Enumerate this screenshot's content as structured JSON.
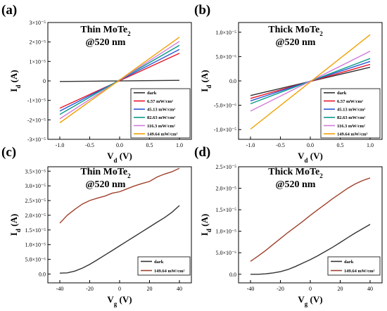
{
  "chart_data": [
    {
      "panel": "(a)",
      "type": "line",
      "title_line1": "Thin MoTe",
      "title_sub": "2",
      "title_line2": "@520 nm",
      "xlabel_main": "V",
      "xlabel_sub": "d",
      "xlabel_unit": " (V)",
      "ylabel_main": "I",
      "ylabel_sub": "d",
      "ylabel_unit": " (A)",
      "xlim": [
        -1.2,
        1.2
      ],
      "ylim": [
        -3e-05,
        3e-05
      ],
      "xticks": [
        -1.0,
        -0.5,
        0.0,
        0.5,
        1.0
      ],
      "xtick_labels": [
        "-1.0",
        "-0.5",
        "0.0",
        "0.5",
        "1.0"
      ],
      "yticks": [
        -3e-05,
        -2e-05,
        -1e-05,
        0,
        1e-05,
        2e-05,
        3e-05
      ],
      "ytick_labels": [
        "-3×10⁻⁵",
        "-2×10⁻⁵",
        "-1×10⁻⁵",
        "0",
        "1×10⁻⁵",
        "2×10⁻⁵",
        "3×10⁻⁵"
      ],
      "legend": "bottom-right",
      "series": [
        {
          "name": "dark",
          "color": "#333333",
          "x": [
            -1,
            1
          ],
          "y": [
            -3e-07,
            3e-07
          ]
        },
        {
          "name": "6.57 mW/cm²",
          "color": "#e8142a",
          "x": [
            -1,
            1
          ],
          "y": [
            -1.4e-05,
            1.42e-05
          ]
        },
        {
          "name": "45.13 mW/cm²",
          "color": "#2a57d6",
          "x": [
            -1,
            1
          ],
          "y": [
            -1.55e-05,
            1.62e-05
          ]
        },
        {
          "name": "82.63 mW/cm²",
          "color": "#0a9a8a",
          "x": [
            -1,
            1
          ],
          "y": [
            -1.72e-05,
            1.83e-05
          ]
        },
        {
          "name": "116.3 mW/cm²",
          "color": "#d27bd9",
          "x": [
            -1,
            1
          ],
          "y": [
            -1.95e-05,
            2.03e-05
          ]
        },
        {
          "name": "149.64 mW/cm²",
          "color": "#f0a000",
          "x": [
            -1,
            1
          ],
          "y": [
            -2.15e-05,
            2.25e-05
          ]
        }
      ]
    },
    {
      "panel": "(b)",
      "type": "line",
      "title_line1": "Thick MoTe",
      "title_sub": "2",
      "title_line2": "@520 nm",
      "xlabel_main": "V",
      "xlabel_sub": "d",
      "xlabel_unit": " (V)",
      "ylabel_main": "I",
      "ylabel_sub": "d",
      "ylabel_unit": " (A)",
      "xlim": [
        -1.2,
        1.2
      ],
      "ylim": [
        -1.2e-05,
        1.2e-05
      ],
      "xticks": [
        -1.0,
        -0.5,
        0.0,
        0.5,
        1.0
      ],
      "xtick_labels": [
        "-1.0",
        "-0.5",
        "0.0",
        "0.5",
        "1.0"
      ],
      "yticks": [
        -1e-05,
        -5e-06,
        0,
        5e-06,
        1e-05
      ],
      "ytick_labels": [
        "-1.0×10⁻⁵",
        "-5.0×10⁻⁶",
        "0.0",
        "5.0×10⁻⁶",
        "1.0×10⁻⁵"
      ],
      "legend": "bottom-right",
      "series": [
        {
          "name": "dark",
          "color": "#333333",
          "x": [
            -1,
            1
          ],
          "y": [
            -3e-06,
            2.8e-06
          ]
        },
        {
          "name": "6.57 mW/cm²",
          "color": "#e8142a",
          "x": [
            -1,
            1
          ],
          "y": [
            -3.6e-06,
            3.4e-06
          ]
        },
        {
          "name": "45.13 mW/cm²",
          "color": "#2a57d6",
          "x": [
            -1,
            1
          ],
          "y": [
            -4.1e-06,
            4e-06
          ]
        },
        {
          "name": "82.63 mW/cm²",
          "color": "#0a9a8a",
          "x": [
            -1,
            1
          ],
          "y": [
            -4.7e-06,
            4.6e-06
          ]
        },
        {
          "name": "116.3 mW/cm²",
          "color": "#d27bd9",
          "x": [
            -1,
            1
          ],
          "y": [
            -6.2e-06,
            6.1e-06
          ]
        },
        {
          "name": "149.64 mW/cm²",
          "color": "#f0a000",
          "x": [
            -1,
            1
          ],
          "y": [
            -9.9e-06,
            9.5e-06
          ]
        }
      ]
    },
    {
      "panel": "(c)",
      "type": "line",
      "title_line1": "Thin MoTe",
      "title_sub": "2",
      "title_line2": "@520 nm",
      "xlabel_main": "V",
      "xlabel_sub": "g",
      "xlabel_unit": " (V)",
      "ylabel_main": "I",
      "ylabel_sub": "d",
      "ylabel_unit": " (A)",
      "xlim": [
        -48,
        48
      ],
      "ylim": [
        -3e-06,
        3.65e-05
      ],
      "xticks": [
        -40,
        -20,
        0,
        20,
        40
      ],
      "xtick_labels": [
        "-40",
        "-20",
        "0",
        "20",
        "40"
      ],
      "yticks": [
        0,
        5e-06,
        1e-05,
        1.5e-05,
        2e-05,
        2.5e-05,
        3e-05,
        3.5e-05
      ],
      "ytick_labels": [
        "0.0",
        "5.0×10⁻⁶",
        "1.0×10⁻⁵",
        "1.5×10⁻⁵",
        "2.0×10⁻⁵",
        "2.5×10⁻⁵",
        "3.0×10⁻⁵",
        "3.5×10⁻⁵"
      ],
      "legend": "bottom-right",
      "series": [
        {
          "name": "dark",
          "color": "#333333",
          "x": [
            -40,
            -35,
            -30,
            -25,
            -20,
            -15,
            -10,
            -5,
            0,
            5,
            10,
            15,
            20,
            25,
            30,
            35,
            40
          ],
          "y": [
            3e-07,
            4e-07,
            1e-06,
            2e-06,
            3.3e-06,
            4.8e-06,
            6.4e-06,
            8e-06,
            9.6e-06,
            1.12e-05,
            1.28e-05,
            1.44e-05,
            1.6e-05,
            1.76e-05,
            1.92e-05,
            2.1e-05,
            2.33e-05
          ]
        },
        {
          "name": "149.64 mW/cm²",
          "color": "#a0402a",
          "x": [
            -40,
            -35,
            -30,
            -25,
            -20,
            -15,
            -10,
            -5,
            0,
            5,
            10,
            15,
            20,
            25,
            30,
            35,
            40
          ],
          "y": [
            1.73e-05,
            2e-05,
            2.2e-05,
            2.38e-05,
            2.5e-05,
            2.58e-05,
            2.65e-05,
            2.75e-05,
            2.8e-05,
            2.9e-05,
            3e-05,
            3.08e-05,
            3.15e-05,
            3.3e-05,
            3.4e-05,
            3.48e-05,
            3.6e-05
          ]
        }
      ]
    },
    {
      "panel": "(d)",
      "type": "line",
      "title_line1": "Thick MoTe",
      "title_sub": "2",
      "title_line2": "@520 nm",
      "xlabel_main": "V",
      "xlabel_sub": "g",
      "xlabel_unit": " (V)",
      "ylabel_main": "I",
      "ylabel_sub": "d",
      "ylabel_unit": " (A)",
      "xlim": [
        -48,
        48
      ],
      "ylim": [
        -2e-06,
        2.5e-05
      ],
      "xticks": [
        -40,
        -20,
        0,
        20,
        40
      ],
      "xtick_labels": [
        "-40",
        "-20",
        "0",
        "20",
        "40"
      ],
      "yticks": [
        0,
        5e-06,
        1e-05,
        1.5e-05,
        2e-05,
        2.5e-05
      ],
      "ytick_labels": [
        "0.0",
        "5.0×10⁻⁶",
        "1.0×10⁻⁵",
        "1.5×10⁻⁵",
        "2.0×10⁻⁵",
        "2.5×10⁻⁵"
      ],
      "legend": "bottom-right",
      "series": [
        {
          "name": "dark",
          "color": "#333333",
          "x": [
            -40,
            -35,
            -30,
            -25,
            -20,
            -15,
            -10,
            -5,
            0,
            5,
            10,
            15,
            20,
            25,
            30,
            35,
            40
          ],
          "y": [
            0,
            0,
            1e-07,
            3e-07,
            6e-07,
            1.1e-06,
            1.8e-06,
            2.6e-06,
            3.4e-06,
            4.3e-06,
            5.3e-06,
            6.3e-06,
            7.4e-06,
            8.5e-06,
            9.6e-06,
            1.06e-05,
            1.16e-05
          ]
        },
        {
          "name": "149.64 mW/cm²",
          "color": "#a0402a",
          "x": [
            -40,
            -35,
            -30,
            -25,
            -20,
            -15,
            -10,
            -5,
            0,
            5,
            10,
            15,
            20,
            25,
            30,
            35,
            40
          ],
          "y": [
            3e-06,
            4.2e-06,
            5.5e-06,
            6.9e-06,
            8.3e-06,
            9.7e-06,
            1.1e-05,
            1.23e-05,
            1.37e-05,
            1.5e-05,
            1.63e-05,
            1.76e-05,
            1.88e-05,
            2e-05,
            2.1e-05,
            2.18e-05,
            2.24e-05
          ]
        }
      ]
    }
  ]
}
